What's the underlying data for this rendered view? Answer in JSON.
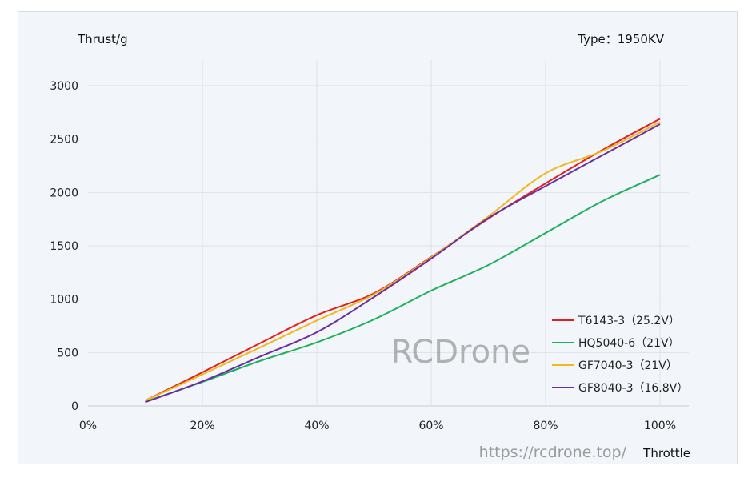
{
  "chart_data": {
    "type": "line",
    "ylabel": "Thrust/g",
    "xlabel": "Throttle",
    "type_label": "Type：1950KV",
    "x": [
      10,
      20,
      30,
      40,
      50,
      60,
      70,
      80,
      90,
      100
    ],
    "xlim": [
      0,
      100
    ],
    "ylim": [
      0,
      3000
    ],
    "xticks": [
      "0%",
      "20%",
      "40%",
      "60%",
      "80%",
      "100%"
    ],
    "yticks": [
      "0",
      "500",
      "1000",
      "1500",
      "2000",
      "2500",
      "3000"
    ],
    "grid": true,
    "legend_position": "bottom-right",
    "series": [
      {
        "name": "T6143-3（25.2V）",
        "color": "#e0201e",
        "values": [
          50,
          315,
          585,
          850,
          1055,
          1395,
          1755,
          2085,
          2400,
          2690
        ]
      },
      {
        "name": "HQ5040-6（21V）",
        "color": "#1fb05a",
        "values": [
          40,
          225,
          420,
          595,
          810,
          1080,
          1320,
          1620,
          1920,
          2165
        ]
      },
      {
        "name": "GF7040-3（21V）",
        "color": "#f2b81a",
        "values": [
          50,
          295,
          545,
          800,
          1045,
          1390,
          1775,
          2180,
          2390,
          2660
        ]
      },
      {
        "name": "GF8040-3（16.8V）",
        "color": "#6a2fa0",
        "values": [
          35,
          230,
          460,
          690,
          1020,
          1380,
          1760,
          2060,
          2350,
          2640
        ]
      }
    ],
    "watermarks": [
      "RCDrone",
      "https://rcdrone.top/"
    ]
  }
}
